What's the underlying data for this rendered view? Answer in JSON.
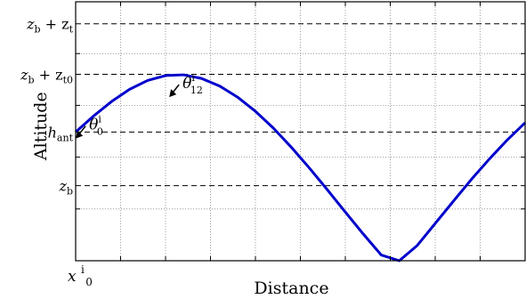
{
  "chart_data": {
    "type": "line",
    "xlabel": "Distance",
    "ylabel": "Altitude",
    "x_tick_label": "x",
    "x_tick_label_sup": "i",
    "x_tick_label_sub": "0",
    "xlim": [
      0,
      10
    ],
    "ylim": [
      0,
      1
    ],
    "xgrid": [
      1,
      2,
      3,
      4,
      5,
      6,
      7,
      8,
      9
    ],
    "ygrid": [
      0.2,
      0.4,
      0.6,
      0.8
    ],
    "grid": true,
    "reference_lines": [
      {
        "label": "z",
        "sub": "b",
        "tail": " + z",
        "tail_sub": "t",
        "y": 0.915
      },
      {
        "label": "z",
        "sub": "b",
        "tail": " + z",
        "tail_sub": "t0",
        "y": 0.72
      },
      {
        "label": "h",
        "sub": "ant",
        "tail": "",
        "tail_sub": "",
        "y": 0.497
      },
      {
        "label": "z",
        "sub": "b",
        "tail": "",
        "tail_sub": "",
        "y": 0.29
      }
    ],
    "series": [
      {
        "color": "#0000cc",
        "x": [
          0,
          0.4,
          0.8,
          1.2,
          1.6,
          2.0,
          2.4,
          2.8,
          3.2,
          3.6,
          4.0,
          4.4,
          4.8,
          5.2,
          5.6,
          6.0,
          6.4,
          6.8,
          7.2,
          7.6,
          8.0,
          8.4,
          8.8,
          9.2,
          9.6,
          10.0
        ],
        "y": [
          0.497,
          0.559,
          0.615,
          0.662,
          0.696,
          0.715,
          0.718,
          0.704,
          0.675,
          0.632,
          0.577,
          0.512,
          0.438,
          0.358,
          0.274,
          0.188,
          0.103,
          0.022,
          0.0,
          0.059,
          0.144,
          0.229,
          0.313,
          0.392,
          0.466,
          0.533
        ]
      }
    ],
    "annotations": [
      {
        "symbol": "θ",
        "sup": "i",
        "sub": "0",
        "x": 0.22,
        "y": 0.52
      },
      {
        "symbol": "θ",
        "sup": "i",
        "sub": "12",
        "x": 2.3,
        "y": 0.68
      }
    ]
  }
}
